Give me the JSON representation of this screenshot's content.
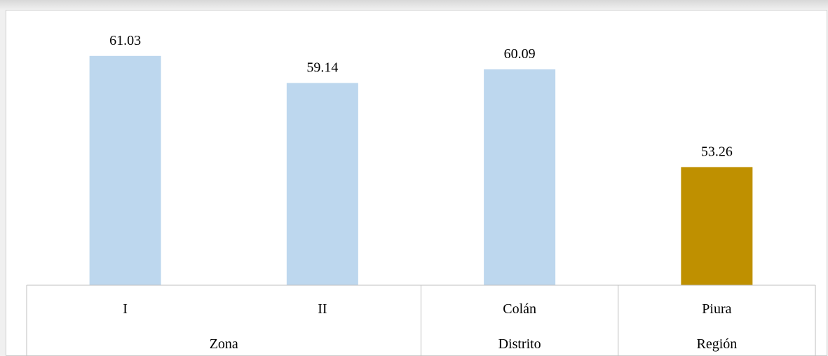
{
  "chart_data": {
    "type": "bar",
    "categories": [
      "I",
      "II",
      "Colán",
      "Piura"
    ],
    "groups": [
      {
        "label": "Zona",
        "categories": [
          "I",
          "II"
        ]
      },
      {
        "label": "Distrito",
        "categories": [
          "Colán"
        ]
      },
      {
        "label": "Región",
        "categories": [
          "Piura"
        ]
      }
    ],
    "values": [
      61.03,
      59.14,
      60.09,
      53.26
    ],
    "data_labels": [
      "61.03",
      "59.14",
      "60.09",
      "53.26"
    ],
    "bar_colors": [
      "#bdd7ee",
      "#bdd7ee",
      "#bdd7ee",
      "#bf9000"
    ],
    "title": "",
    "xlabel": "",
    "ylabel": "",
    "ylim": [
      45,
      62
    ],
    "grid": false,
    "legend": "none"
  }
}
